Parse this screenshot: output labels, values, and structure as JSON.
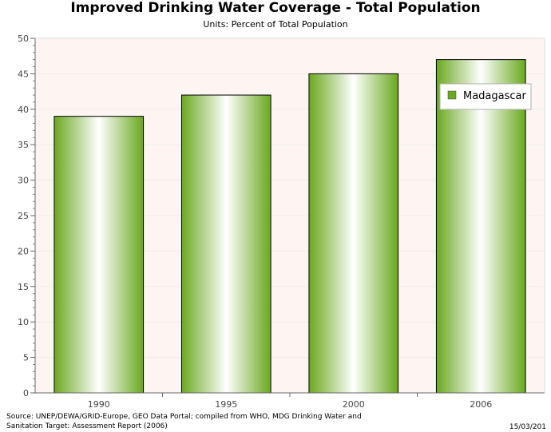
{
  "chart_data": {
    "type": "bar",
    "title": "Improved Drinking Water Coverage - Total Population",
    "subtitle": "Units: Percent of Total Population",
    "xlabel": "",
    "ylabel": "",
    "categories": [
      "1990",
      "1995",
      "2000",
      "2006"
    ],
    "series": [
      {
        "name": "Madagascar",
        "values": [
          39,
          42,
          45,
          47
        ]
      }
    ],
    "ylim": [
      0,
      50
    ],
    "yticks": [
      0,
      5,
      10,
      15,
      20,
      25,
      30,
      35,
      40,
      45,
      50
    ],
    "grid": true,
    "legend_position": "top-right",
    "colors": {
      "bar_dark": "#6aa820",
      "bar_light": "#ffffff",
      "plot_background": "#fdf5f1",
      "gridline": "#eeeeee"
    }
  },
  "footer": {
    "source": "Source: UNEP/DEWA/GRID-Europe, GEO Data Portal; compiled from WHO, MDG Drinking Water and Sanitation Target: Assessment Report (2006)",
    "date": "15/03/201"
  }
}
